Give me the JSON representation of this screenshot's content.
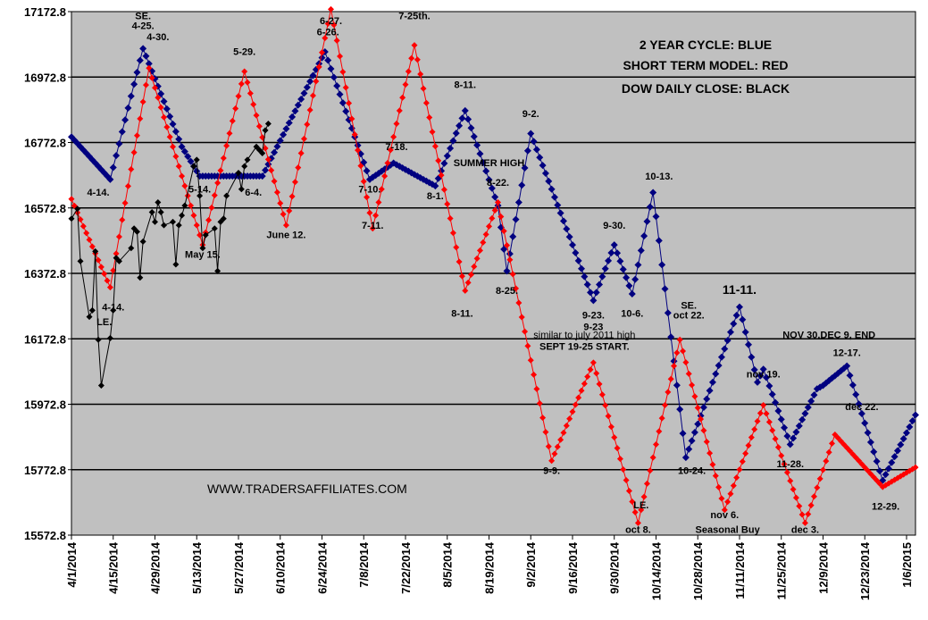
{
  "chart_data": {
    "type": "line",
    "title": "",
    "xlabel": "",
    "ylabel": "",
    "ylim": [
      15572.8,
      17172.8
    ],
    "y_ticks": [
      "17172.8",
      "16972.8",
      "16772.8",
      "16572.8",
      "16372.8",
      "16172.8",
      "15972.8",
      "15772.8",
      "15572.8"
    ],
    "x_range": [
      "2014-04-01",
      "2015-01-09"
    ],
    "x_ticks": [
      "4/1/2014",
      "4/15/2014",
      "4/29/2014",
      "5/13/2014",
      "5/27/2014",
      "6/10/2014",
      "6/24/2014",
      "7/8/2014",
      "7/22/2014",
      "8/5/2014",
      "8/19/2014",
      "9/2/2014",
      "9/16/2014",
      "9/30/2014",
      "10/14/2014",
      "10/28/2014",
      "11/11/2014",
      "11/25/2014",
      "12/9/2014",
      "12/23/2014",
      "1/6/2015"
    ],
    "x_tick_dates": [
      "2014-04-01",
      "2014-04-15",
      "2014-04-29",
      "2014-05-13",
      "2014-05-27",
      "2014-06-10",
      "2014-06-24",
      "2014-07-08",
      "2014-07-22",
      "2014-08-05",
      "2014-08-19",
      "2014-09-02",
      "2014-09-16",
      "2014-09-30",
      "2014-10-14",
      "2014-10-28",
      "2014-11-11",
      "2014-11-25",
      "2014-12-09",
      "2014-12-23",
      "2015-01-06"
    ],
    "grid": "horizontal",
    "background": "#c0c0c0",
    "legend_lines": [
      "2 YEAR CYCLE: BLUE",
      "SHORT TERM MODEL: RED",
      "DOW DAILY CLOSE: BLACK"
    ],
    "legend_placement": "top-right",
    "watermark": "WWW.TRADERSAFFILIATES.COM",
    "series": [
      {
        "color": "#000080",
        "marker": "diamond",
        "anchors": [
          [
            "2014-04-01",
            16790
          ],
          [
            "2014-04-14",
            16660
          ],
          [
            "2014-04-25",
            17060
          ],
          [
            "2014-05-08",
            16760
          ],
          [
            "2014-05-12",
            16700
          ],
          [
            "2014-05-14",
            16670
          ],
          [
            "2014-06-04",
            16670
          ],
          [
            "2014-06-25",
            17050
          ],
          [
            "2014-07-10",
            16660
          ],
          [
            "2014-07-18",
            16710
          ],
          [
            "2014-08-01",
            16640
          ],
          [
            "2014-08-11",
            16870
          ],
          [
            "2014-08-22",
            16580
          ],
          [
            "2014-08-25",
            16380
          ],
          [
            "2014-09-02",
            16800
          ],
          [
            "2014-09-23",
            16290
          ],
          [
            "2014-09-30",
            16460
          ],
          [
            "2014-10-06",
            16310
          ],
          [
            "2014-10-13",
            16620
          ],
          [
            "2014-10-24",
            15810
          ],
          [
            "2014-11-11",
            16270
          ],
          [
            "2014-11-17",
            16040
          ],
          [
            "2014-11-19",
            16080
          ],
          [
            "2014-11-28",
            15850
          ],
          [
            "2014-12-07",
            16020
          ],
          [
            "2014-12-09",
            16030
          ],
          [
            "2014-12-17",
            16090
          ],
          [
            "2014-12-29",
            15740
          ],
          [
            "2015-01-09",
            15940
          ]
        ]
      },
      {
        "color": "#ff0000",
        "marker": "diamond",
        "anchors": [
          [
            "2014-04-01",
            16600
          ],
          [
            "2014-04-14",
            16330
          ],
          [
            "2014-04-27",
            17000
          ],
          [
            "2014-05-15",
            16460
          ],
          [
            "2014-05-29",
            16990
          ],
          [
            "2014-06-12",
            16520
          ],
          [
            "2014-06-27",
            17180
          ],
          [
            "2014-07-11",
            16510
          ],
          [
            "2014-07-25th",
            17070
          ],
          [
            "2014-08-11",
            16320
          ],
          [
            "2014-08-22",
            16590
          ],
          [
            "2014-09-09",
            15800
          ],
          [
            "2014-09-23",
            16100
          ],
          [
            "2014-10-08",
            15610
          ],
          [
            "2014-10-22",
            16170
          ],
          [
            "2014-11-06",
            15650
          ],
          [
            "2014-11-19",
            15970
          ],
          [
            "2014-12-03",
            15610
          ],
          [
            "2014-12-13",
            15880
          ],
          [
            "2014-12-29",
            15720
          ],
          [
            "2015-01-09",
            15780
          ]
        ]
      },
      {
        "color": "#000000",
        "marker": "diamond",
        "anchors": [
          [
            "2014-04-01",
            16540
          ],
          [
            "2014-04-03",
            16570
          ],
          [
            "2014-04-04",
            16410
          ],
          [
            "2014-04-07",
            16240
          ],
          [
            "2014-04-08",
            16260
          ],
          [
            "2014-04-09",
            16440
          ],
          [
            "2014-04-10",
            16170
          ],
          [
            "2014-04-11",
            16030
          ],
          [
            "2014-04-14",
            16175
          ],
          [
            "2014-04-15",
            16260
          ],
          [
            "2014-04-16",
            16420
          ],
          [
            "2014-04-17",
            16410
          ],
          [
            "2014-04-21",
            16450
          ],
          [
            "2014-04-22",
            16510
          ],
          [
            "2014-04-23",
            16500
          ],
          [
            "2014-04-24",
            16360
          ],
          [
            "2014-04-25",
            16470
          ],
          [
            "2014-04-28",
            16560
          ],
          [
            "2014-04-29",
            16530
          ],
          [
            "2014-04-30",
            16590
          ],
          [
            "2014-05-01",
            16560
          ],
          [
            "2014-05-02",
            16520
          ],
          [
            "2014-05-05",
            16530
          ],
          [
            "2014-05-06",
            16400
          ],
          [
            "2014-05-07",
            16520
          ],
          [
            "2014-05-08",
            16550
          ],
          [
            "2014-05-09",
            16580
          ],
          [
            "2014-05-12",
            16700
          ],
          [
            "2014-05-13",
            16720
          ],
          [
            "2014-05-14",
            16610
          ],
          [
            "2014-05-15",
            16450
          ],
          [
            "2014-05-16",
            16490
          ],
          [
            "2014-05-19",
            16510
          ],
          [
            "2014-05-20",
            16380
          ],
          [
            "2014-05-21",
            16530
          ],
          [
            "2014-05-22",
            16540
          ],
          [
            "2014-05-23",
            16610
          ],
          [
            "2014-05-27",
            16680
          ],
          [
            "2014-05-28",
            16630
          ],
          [
            "2014-05-29",
            16700
          ],
          [
            "2014-05-30",
            16720
          ],
          [
            "2014-06-02",
            16760
          ],
          [
            "2014-06-03",
            16750
          ],
          [
            "2014-06-04",
            16740
          ],
          [
            "2014-06-05",
            16810
          ],
          [
            "2014-06-06",
            16830
          ]
        ]
      }
    ],
    "annotations": [
      {
        "text": "SE.",
        "date": "2014-04-25",
        "value": 17150
      },
      {
        "text": "4-25.",
        "date": "2014-04-25",
        "value": 17120
      },
      {
        "text": "4-30.",
        "date": "2014-04-30",
        "value": 17085
      },
      {
        "text": "5-29.",
        "date": "2014-05-29",
        "value": 17040
      },
      {
        "text": "6-27.",
        "date": "2014-06-27",
        "value": 17135
      },
      {
        "text": "6-26.",
        "date": "2014-06-26",
        "value": 17100
      },
      {
        "text": "7-25th.",
        "date": "2014-07-25",
        "value": 17150
      },
      {
        "text": "8-11.",
        "date": "2014-08-11",
        "value": 16940
      },
      {
        "text": "9-2.",
        "date": "2014-09-02",
        "value": 16850
      },
      {
        "text": "7-18.",
        "date": "2014-07-19",
        "value": 16750
      },
      {
        "text": "SUMMER HIGH",
        "date": "2014-08-19",
        "value": 16700
      },
      {
        "text": "10-13.",
        "date": "2014-10-15",
        "value": 16660
      },
      {
        "text": "4-14.",
        "date": "2014-04-10",
        "value": 16610
      },
      {
        "text": "5-14.",
        "date": "2014-05-14",
        "value": 16620
      },
      {
        "text": "6-4.",
        "date": "2014-06-01",
        "value": 16610
      },
      {
        "text": "7-10.",
        "date": "2014-07-10",
        "value": 16620
      },
      {
        "text": "8-1.",
        "date": "2014-08-01",
        "value": 16600
      },
      {
        "text": "8-22.",
        "date": "2014-08-22",
        "value": 16640
      },
      {
        "text": "7-11.",
        "date": "2014-07-11",
        "value": 16510
      },
      {
        "text": "June 12.",
        "date": "2014-06-12",
        "value": 16480
      },
      {
        "text": "9-30.",
        "date": "2014-09-30",
        "value": 16510
      },
      {
        "text": "May 15.",
        "date": "2014-05-15",
        "value": 16420
      },
      {
        "text": "11-11.",
        "date": "2014-11-11",
        "value": 16310,
        "big": true
      },
      {
        "text": "8-25.",
        "date": "2014-08-25",
        "value": 16310
      },
      {
        "text": "4-14.",
        "date": "2014-04-15",
        "value": 16260
      },
      {
        "text": "SE.",
        "date": "2014-10-25",
        "value": 16265
      },
      {
        "text": "8-11.",
        "date": "2014-08-10",
        "value": 16240
      },
      {
        "text": "9-23.",
        "date": "2014-09-23",
        "value": 16235
      },
      {
        "text": "10-6.",
        "date": "2014-10-06",
        "value": 16240
      },
      {
        "text": "oct 22.",
        "date": "2014-10-25",
        "value": 16235
      },
      {
        "text": "LE.",
        "date": "2014-04-12",
        "value": 16215
      },
      {
        "text": "9-23",
        "date": "2014-09-23",
        "value": 16200
      },
      {
        "text": "similar to july 2011 high",
        "date": "2014-09-20",
        "value": 16175,
        "plain": true
      },
      {
        "text": "NOV 30.DEC 9, END",
        "date": "2014-12-11",
        "value": 16175
      },
      {
        "text": "SEPT 19-25 START.",
        "date": "2014-09-20",
        "value": 16140
      },
      {
        "text": "12-17.",
        "date": "2014-12-17",
        "value": 16120
      },
      {
        "text": "nov 19.",
        "date": "2014-11-19",
        "value": 16055
      },
      {
        "text": "dec 22.",
        "date": "2014-12-22",
        "value": 15955
      },
      {
        "text": "9-9.",
        "date": "2014-09-09",
        "value": 15760
      },
      {
        "text": "10-24.",
        "date": "2014-10-26",
        "value": 15760
      },
      {
        "text": "11-28.",
        "date": "2014-11-28",
        "value": 15780
      },
      {
        "text": "LE.",
        "date": "2014-10-09",
        "value": 15655
      },
      {
        "text": "nov 6.",
        "date": "2014-11-06",
        "value": 15625
      },
      {
        "text": "12-29.",
        "date": "2014-12-30",
        "value": 15650
      },
      {
        "text": "oct 8.",
        "date": "2014-10-08",
        "value": 15580
      },
      {
        "text": "Seasonal Buy",
        "date": "2014-11-07",
        "value": 15580
      },
      {
        "text": "dec 3.",
        "date": "2014-12-03",
        "value": 15580
      }
    ]
  }
}
